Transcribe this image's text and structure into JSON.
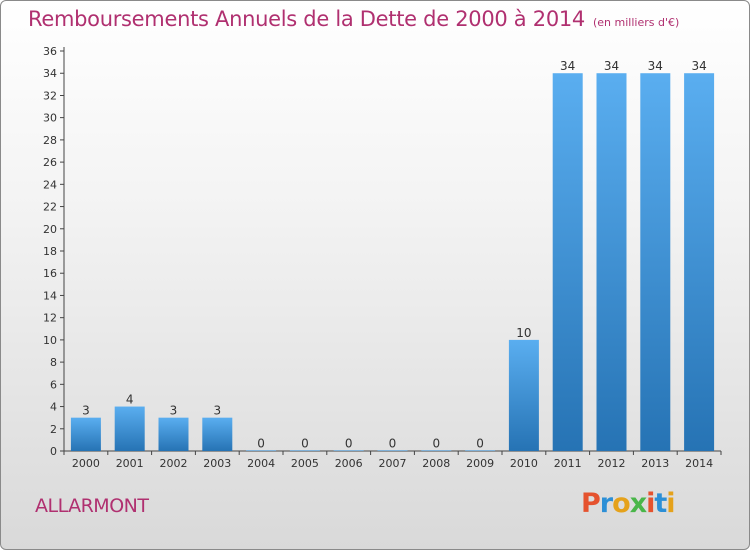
{
  "title": "Remboursements Annuels de la Dette de 2000 à 2014",
  "subtitle": "(en milliers d'€)",
  "commune": "ALLARMONT",
  "logo": {
    "text": "Proxiti",
    "colors": [
      "#e5522e",
      "#2c8fd6",
      "#e5a21b",
      "#49b649",
      "#e5522e",
      "#2c8fd6",
      "#e5a21b"
    ]
  },
  "colors": {
    "title": "#b03070",
    "bar_light": "#5aaef0",
    "bar_dark": "#2673b4",
    "axis": "#444444"
  },
  "chart_data": {
    "type": "bar",
    "title": "Remboursements Annuels de la Dette de 2000 à 2014",
    "subtitle": "(en milliers d'€)",
    "categories": [
      "2000",
      "2001",
      "2002",
      "2003",
      "2004",
      "2005",
      "2006",
      "2007",
      "2008",
      "2009",
      "2010",
      "2011",
      "2012",
      "2013",
      "2014"
    ],
    "values": [
      3,
      4,
      3,
      3,
      0,
      0,
      0,
      0,
      0,
      0,
      10,
      34,
      34,
      34,
      34
    ],
    "ylim": [
      0,
      36
    ],
    "yticks": [
      0,
      2,
      4,
      6,
      8,
      10,
      12,
      14,
      16,
      18,
      20,
      22,
      24,
      26,
      28,
      30,
      32,
      34,
      36
    ],
    "grid": false,
    "legend": "none"
  }
}
